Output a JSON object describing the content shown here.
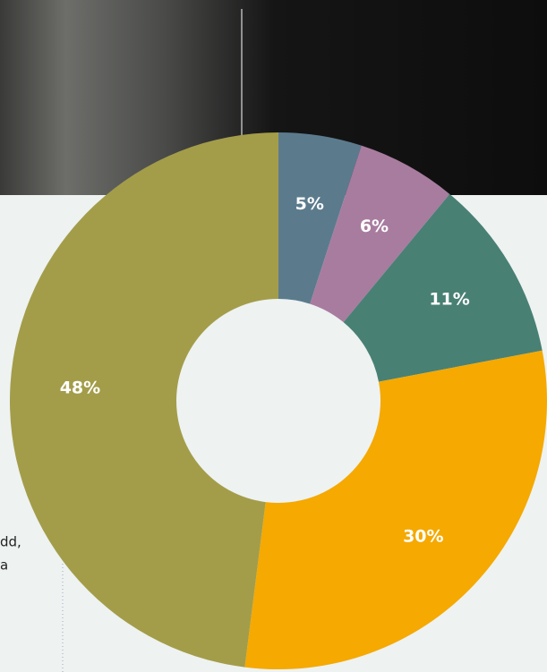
{
  "chart_data": {
    "type": "pie",
    "donut": true,
    "values": [
      5,
      6,
      11,
      30,
      48
    ],
    "value_labels": [
      "5%",
      "6%",
      "11%",
      "30%",
      "48%"
    ],
    "colors": [
      "#5b7b8d",
      "#a87c9f",
      "#498074",
      "#f5a901",
      "#a39d4a"
    ],
    "annotations": [
      "dd,",
      "a"
    ]
  }
}
